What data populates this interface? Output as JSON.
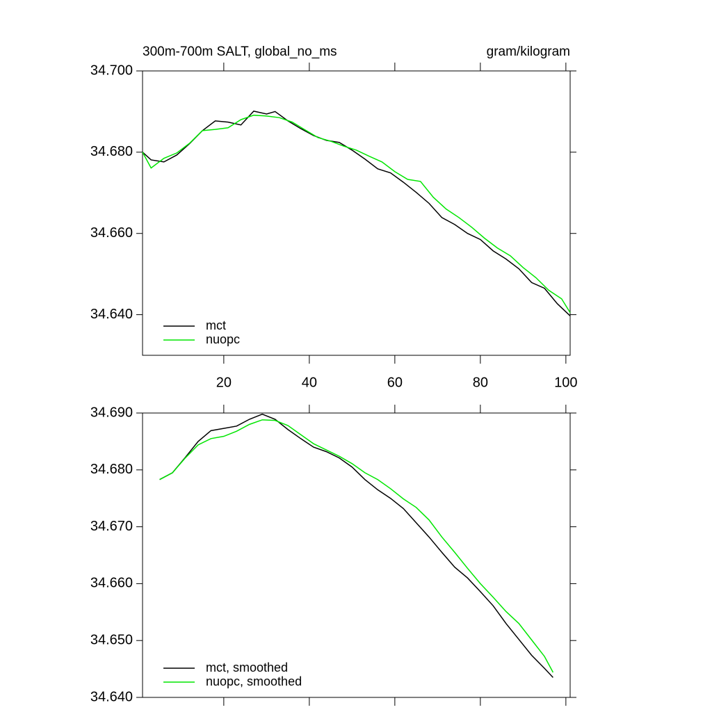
{
  "chart_data": [
    {
      "type": "line",
      "title": "300m-700m SALT, global_no_ms",
      "units": "gram/kilogram",
      "xlim": [
        1,
        101
      ],
      "xticks": [
        20,
        40,
        60,
        80,
        100
      ],
      "ylim": [
        34.63,
        34.7
      ],
      "yticks": [
        {
          "value": 34.64,
          "label": "34.640"
        },
        {
          "value": 34.66,
          "label": "34.660"
        },
        {
          "value": 34.68,
          "label": "34.680"
        },
        {
          "value": 34.7,
          "label": "34.700"
        }
      ],
      "legend": "lower left",
      "series": [
        {
          "name": "mct",
          "color": "#000000",
          "x": [
            1,
            3,
            6,
            9,
            12,
            15,
            18,
            21,
            24,
            27,
            30,
            32,
            35,
            38,
            41,
            44,
            47,
            50,
            53,
            56,
            59,
            62,
            65,
            68,
            71,
            74,
            77,
            80,
            83,
            86,
            89,
            92,
            95,
            98,
            101
          ],
          "values": [
            34.68,
            34.6781,
            34.6776,
            34.6793,
            34.6821,
            34.6853,
            34.6877,
            34.6874,
            34.6867,
            34.6901,
            34.6894,
            34.69,
            34.6877,
            34.6858,
            34.6841,
            34.6829,
            34.6824,
            34.6805,
            34.6783,
            34.6759,
            34.6749,
            34.6726,
            34.6701,
            34.6674,
            34.6639,
            34.6622,
            34.66,
            34.6585,
            34.6557,
            34.6537,
            34.6513,
            34.6479,
            34.6465,
            34.6427,
            34.6397
          ]
        },
        {
          "name": "nuopc",
          "color": "#00e600",
          "x": [
            1,
            3,
            6,
            9,
            12,
            15,
            18,
            21,
            24,
            27,
            30,
            33,
            36,
            39,
            42,
            45,
            48,
            51,
            54,
            57,
            60,
            63,
            66,
            69,
            72,
            75,
            78,
            81,
            84,
            87,
            90,
            93,
            96,
            99,
            101
          ],
          "values": [
            34.68,
            34.6761,
            34.6785,
            34.6798,
            34.6822,
            34.6853,
            34.6856,
            34.686,
            34.688,
            34.6891,
            34.6889,
            34.6885,
            34.6874,
            34.6855,
            34.6836,
            34.6827,
            34.6815,
            34.6805,
            34.679,
            34.6776,
            34.6752,
            34.6733,
            34.6728,
            34.6689,
            34.666,
            34.6639,
            34.6615,
            34.6588,
            34.6564,
            34.6545,
            34.6516,
            34.6491,
            34.646,
            34.6439,
            34.6405
          ]
        }
      ]
    },
    {
      "type": "line",
      "xlim": [
        1,
        101
      ],
      "ylim": [
        34.64,
        34.69
      ],
      "yticks": [
        {
          "value": 34.64,
          "label": "34.640"
        },
        {
          "value": 34.65,
          "label": "34.650"
        },
        {
          "value": 34.66,
          "label": "34.660"
        },
        {
          "value": 34.67,
          "label": "34.670"
        },
        {
          "value": 34.68,
          "label": "34.680"
        },
        {
          "value": 34.69,
          "label": "34.690"
        }
      ],
      "legend": "lower left",
      "series": [
        {
          "name": "mct, smoothed",
          "color": "#000000",
          "x": [
            5,
            8,
            11,
            14,
            17,
            20,
            23,
            26,
            29,
            32,
            35,
            38,
            41,
            44,
            47,
            50,
            53,
            56,
            59,
            62,
            65,
            68,
            71,
            74,
            77,
            80,
            83,
            86,
            89,
            92,
            95,
            97
          ],
          "values": [
            34.6783,
            34.6795,
            34.6822,
            34.685,
            34.6869,
            34.6873,
            34.6877,
            34.6889,
            34.6898,
            34.6889,
            34.6871,
            34.6855,
            34.684,
            34.6832,
            34.6821,
            34.6805,
            34.6783,
            34.6765,
            34.675,
            34.6732,
            34.6707,
            34.6682,
            34.6655,
            34.6629,
            34.661,
            34.6586,
            34.6561,
            34.653,
            34.6502,
            34.6474,
            34.6451,
            34.6435
          ]
        },
        {
          "name": "nuopc, smoothed",
          "color": "#00e600",
          "x": [
            5,
            8,
            11,
            14,
            17,
            20,
            23,
            26,
            29,
            32,
            35,
            38,
            41,
            44,
            47,
            50,
            53,
            56,
            59,
            62,
            65,
            68,
            71,
            74,
            77,
            80,
            83,
            86,
            89,
            92,
            95,
            97
          ],
          "values": [
            34.6783,
            34.6795,
            34.6821,
            34.6844,
            34.6855,
            34.6859,
            34.6868,
            34.688,
            34.6888,
            34.6887,
            34.6878,
            34.6862,
            34.6846,
            34.6835,
            34.6824,
            34.6811,
            34.6795,
            34.6783,
            34.6767,
            34.6749,
            34.6734,
            34.6712,
            34.6682,
            34.6655,
            34.6627,
            34.66,
            34.6576,
            34.6551,
            34.653,
            34.6501,
            34.6472,
            34.6444
          ]
        }
      ]
    }
  ]
}
